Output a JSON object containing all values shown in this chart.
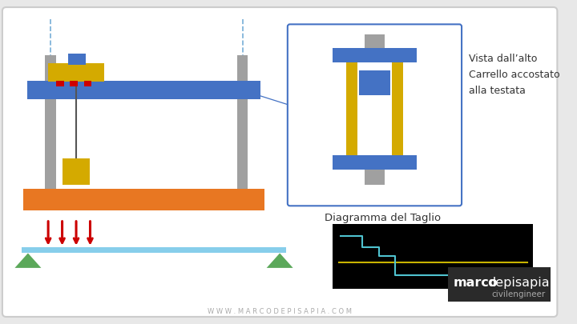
{
  "bg_color": "#e8e8e8",
  "main_bg": "#ffffff",
  "blue_beam": "#4472C4",
  "orange_beam": "#E87722",
  "yellow_box": "#D4AA00",
  "gray_col": "#A0A0A0",
  "green_tri": "#5BA85A",
  "red_arrow": "#CC0000",
  "light_blue_beam": "#87CEEB",
  "diagram_bg": "#000000",
  "diagram_line1": "#4FC3D0",
  "diagram_line2": "#C8B400",
  "vista_text": "Vista dall’alto\nCarrello accostato\nalla testata",
  "diag_text": "Diagramma del Taglio",
  "brand_text1": "marco",
  "brand_text2": "depisapia",
  "brand_sub": "civilengineer",
  "website": "W W W . M A R C O D E P I S A P I A . C O M"
}
